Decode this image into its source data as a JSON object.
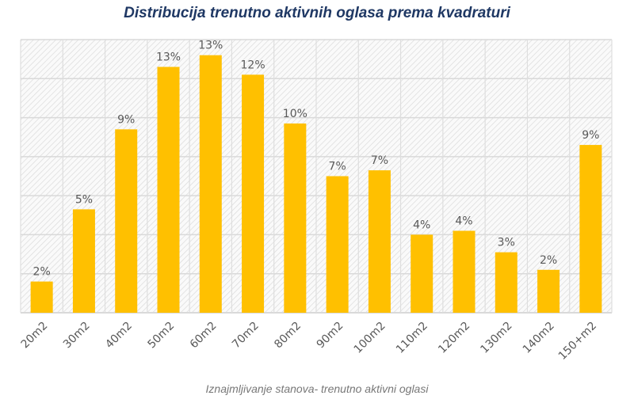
{
  "chart_data": {
    "type": "bar",
    "title": "Distribucija trenutno aktivnih oglasa prema kvadraturi",
    "xlabel": "Iznajmljivanje stanova- trenutno aktivni oglasi",
    "ylabel": "",
    "categories": [
      "20m2",
      "30m2",
      "40m2",
      "50m2",
      "60m2",
      "70m2",
      "80m2",
      "90m2",
      "100m2",
      "110m2",
      "120m2",
      "130m2",
      "140m2",
      "150+m2"
    ],
    "values": [
      1.6,
      5.3,
      9.4,
      12.6,
      13.2,
      12.2,
      9.7,
      7.0,
      7.3,
      4.0,
      4.2,
      3.1,
      2.2,
      8.6
    ],
    "data_labels": [
      "2%",
      "5%",
      "9%",
      "13%",
      "13%",
      "12%",
      "10%",
      "7%",
      "7%",
      "4%",
      "4%",
      "3%",
      "2%",
      "9%"
    ],
    "ylim": [
      0,
      14
    ],
    "ytick_step": 2,
    "grid": true,
    "legend": "none",
    "bar_color": "#ffc000"
  }
}
